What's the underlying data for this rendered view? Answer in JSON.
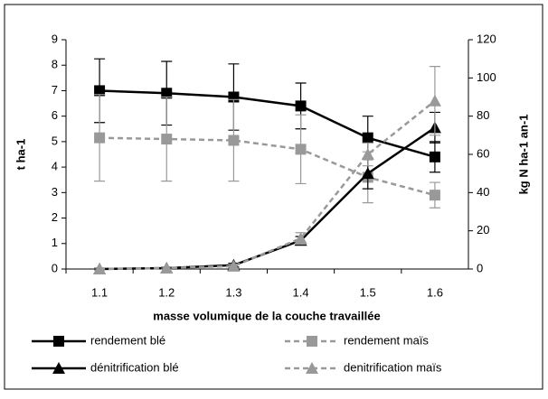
{
  "chart_data": {
    "type": "line",
    "x_label": "masse volumique de la couche travaillée",
    "y_label": "t ha-1",
    "y2_label": "kg N ha-1 an-1",
    "categories": [
      "1.1",
      "1.2",
      "1.3",
      "1.4",
      "1.5",
      "1.6"
    ],
    "ylim": [
      0,
      9
    ],
    "yticks": [
      0,
      1,
      2,
      3,
      4,
      5,
      6,
      7,
      8,
      9
    ],
    "y2lim": [
      0,
      120
    ],
    "y2ticks": [
      0,
      20,
      40,
      60,
      80,
      100,
      120
    ],
    "series": [
      {
        "name": "rendement blé",
        "color": "#000000",
        "dashed": false,
        "marker": "square",
        "axis": "y",
        "values": [
          7.0,
          6.9,
          6.75,
          6.4,
          5.15,
          4.4
        ],
        "errors": [
          1.25,
          1.25,
          1.3,
          0.9,
          0.85,
          0.6
        ]
      },
      {
        "name": "rendement maïs",
        "color": "#999999",
        "dashed": true,
        "marker": "square",
        "axis": "y",
        "values": [
          5.15,
          5.1,
          5.05,
          4.7,
          3.6,
          2.9
        ],
        "errors": [
          1.7,
          1.65,
          1.6,
          1.35,
          1.0,
          0.5
        ]
      },
      {
        "name": "dénitrification blé",
        "color": "#000000",
        "dashed": false,
        "marker": "triangle",
        "axis": "y2",
        "values": [
          0,
          0.5,
          2,
          15,
          50,
          74
        ],
        "errors": [
          0.5,
          0.5,
          1,
          2,
          8,
          8
        ]
      },
      {
        "name": "denitrification maïs",
        "color": "#999999",
        "dashed": true,
        "marker": "triangle",
        "axis": "y2",
        "values": [
          0,
          0.5,
          1.5,
          16,
          60,
          88
        ],
        "errors": [
          0.5,
          0.5,
          1,
          3,
          6,
          18
        ]
      }
    ]
  }
}
